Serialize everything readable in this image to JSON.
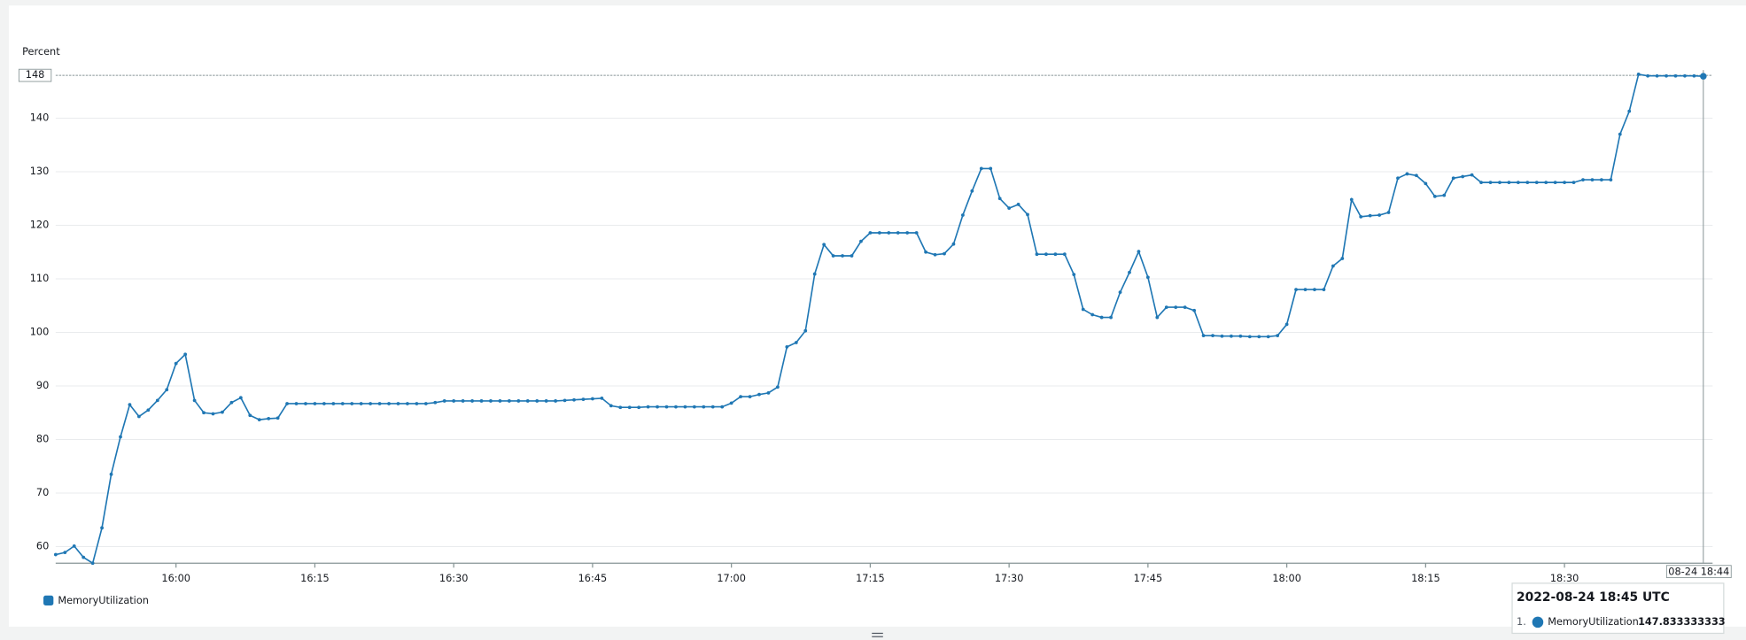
{
  "chart_data": {
    "type": "line",
    "y_label": "Percent",
    "x": [
      "15:47",
      "15:48",
      "15:49",
      "15:50",
      "15:51",
      "15:52",
      "15:53",
      "15:54",
      "15:55",
      "15:56",
      "15:57",
      "15:58",
      "15:59",
      "16:00",
      "16:01",
      "16:02",
      "16:03",
      "16:04",
      "16:05",
      "16:06",
      "16:07",
      "16:08",
      "16:09",
      "16:10",
      "16:11",
      "16:12",
      "16:13",
      "16:14",
      "16:15",
      "16:16",
      "16:17",
      "16:18",
      "16:19",
      "16:20",
      "16:21",
      "16:22",
      "16:23",
      "16:24",
      "16:25",
      "16:26",
      "16:27",
      "16:28",
      "16:29",
      "16:30",
      "16:31",
      "16:32",
      "16:33",
      "16:34",
      "16:35",
      "16:36",
      "16:37",
      "16:38",
      "16:39",
      "16:40",
      "16:41",
      "16:42",
      "16:43",
      "16:44",
      "16:45",
      "16:46",
      "16:47",
      "16:48",
      "16:49",
      "16:50",
      "16:51",
      "16:52",
      "16:53",
      "16:54",
      "16:55",
      "16:56",
      "16:57",
      "16:58",
      "16:59",
      "17:00",
      "17:01",
      "17:02",
      "17:03",
      "17:04",
      "17:05",
      "17:06",
      "17:07",
      "17:08",
      "17:09",
      "17:10",
      "17:11",
      "17:12",
      "17:13",
      "17:14",
      "17:15",
      "17:16",
      "17:17",
      "17:18",
      "17:19",
      "17:20",
      "17:21",
      "17:22",
      "17:23",
      "17:24",
      "17:25",
      "17:26",
      "17:27",
      "17:28",
      "17:29",
      "17:30",
      "17:31",
      "17:32",
      "17:33",
      "17:34",
      "17:35",
      "17:36",
      "17:37",
      "17:38",
      "17:39",
      "17:40",
      "17:41",
      "17:42",
      "17:43",
      "17:44",
      "17:45",
      "17:46",
      "17:47",
      "17:48",
      "17:49",
      "17:50",
      "17:51",
      "17:52",
      "17:53",
      "17:54",
      "17:55",
      "17:56",
      "17:57",
      "17:58",
      "17:59",
      "18:00",
      "18:01",
      "18:02",
      "18:03",
      "18:04",
      "18:05",
      "18:06",
      "18:07",
      "18:08",
      "18:09",
      "18:10",
      "18:11",
      "18:12",
      "18:13",
      "18:14",
      "18:15",
      "18:16",
      "18:17",
      "18:18",
      "18:19",
      "18:20",
      "18:21",
      "18:22",
      "18:23",
      "18:24",
      "18:25",
      "18:26",
      "18:27",
      "18:28",
      "18:29",
      "18:30",
      "18:31",
      "18:32",
      "18:33",
      "18:34",
      "18:35",
      "18:36",
      "18:37",
      "18:38",
      "18:39",
      "18:40",
      "18:41",
      "18:42",
      "18:43",
      "18:44",
      "18:45"
    ],
    "series": [
      {
        "name": "MemoryUtilization",
        "color": "#1f77b4",
        "values": [
          58.5,
          58.9,
          60.1,
          58,
          56.9,
          63.5,
          73.5,
          80.5,
          86.5,
          84.3,
          85.5,
          87.3,
          89.3,
          94.2,
          95.9,
          87.3,
          85,
          84.8,
          85.1,
          86.9,
          87.8,
          84.5,
          83.7,
          83.9,
          84,
          86.7,
          86.7,
          86.7,
          86.7,
          86.7,
          86.7,
          86.7,
          86.7,
          86.7,
          86.7,
          86.7,
          86.7,
          86.7,
          86.7,
          86.7,
          86.7,
          86.9,
          87.2,
          87.2,
          87.2,
          87.2,
          87.2,
          87.2,
          87.2,
          87.2,
          87.2,
          87.2,
          87.2,
          87.2,
          87.2,
          87.3,
          87.4,
          87.5,
          87.6,
          87.7,
          86.3,
          86.0,
          86.0,
          86.0,
          86.1,
          86.1,
          86.1,
          86.1,
          86.1,
          86.1,
          86.1,
          86.1,
          86.1,
          86.8,
          88,
          88,
          88.4,
          88.7,
          89.8,
          97.3,
          98.1,
          100.3,
          110.9,
          116.4,
          114.3,
          114.3,
          114.3,
          117,
          118.6,
          118.6,
          118.6,
          118.6,
          118.6,
          118.6,
          115,
          114.5,
          114.7,
          116.5,
          121.9,
          126.4,
          130.6,
          130.6,
          125,
          123.2,
          123.9,
          122,
          114.6,
          114.6,
          114.6,
          114.6,
          110.8,
          104.3,
          103.3,
          102.8,
          102.8,
          107.5,
          111.2,
          115.1,
          110.3,
          102.8,
          104.7,
          104.7,
          104.7,
          104.1,
          99.4,
          99.4,
          99.3,
          99.3,
          99.3,
          99.2,
          99.2,
          99.2,
          99.4,
          101.5,
          108,
          108,
          108,
          108,
          112.4,
          113.8,
          124.8,
          121.6,
          121.8,
          121.9,
          122.4,
          128.8,
          129.6,
          129.3,
          127.8,
          125.4,
          125.6,
          128.8,
          129.1,
          129.4,
          128,
          128,
          128,
          128,
          128,
          128,
          128,
          128,
          128,
          128,
          128,
          128.5,
          128.5,
          128.5,
          128.5,
          137,
          141.3,
          148.2,
          147.9,
          147.9,
          147.9,
          147.9,
          147.9,
          147.9,
          147.833333333
        ]
      }
    ],
    "xlim": [
      "15:47",
      "18:46"
    ],
    "xticks": [
      "16:00",
      "16:15",
      "16:30",
      "16:45",
      "17:00",
      "17:15",
      "17:30",
      "17:45",
      "18:00",
      "18:15",
      "18:30"
    ],
    "ylim": [
      56.9,
      149
    ],
    "yticks": [
      60,
      70,
      80,
      90,
      100,
      110,
      120,
      130,
      140
    ],
    "grid": true,
    "crosshair": {
      "y": 148,
      "x": "18:45",
      "x_label": "08-24 18:44"
    },
    "tooltip": {
      "title": "2022-08-24 18:45 UTC",
      "index": "1."
    }
  }
}
